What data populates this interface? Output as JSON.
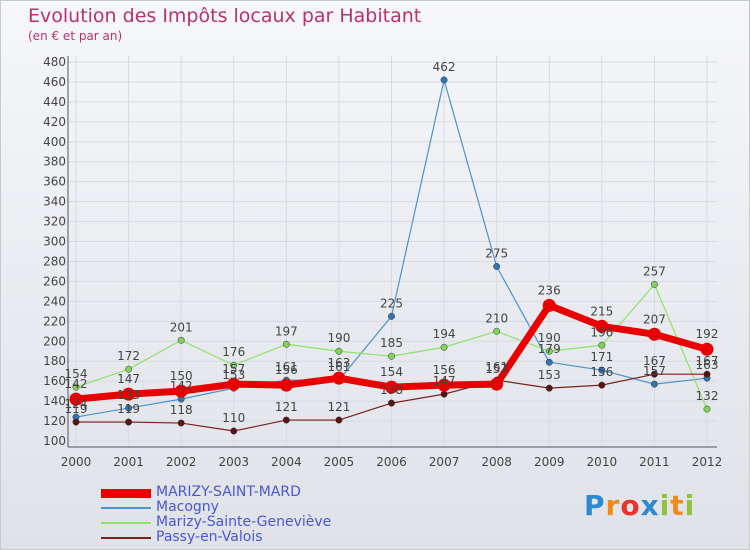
{
  "chart_data": {
    "type": "line",
    "title": "Evolution des Impôts locaux par Habitant",
    "subtitle": "(en € et par an)",
    "xlabel": "",
    "ylabel": "",
    "ylim": [
      100,
      480
    ],
    "y_ticks": [
      100,
      120,
      140,
      160,
      180,
      200,
      220,
      240,
      260,
      280,
      300,
      320,
      340,
      360,
      380,
      400,
      420,
      440,
      460,
      480
    ],
    "categories": [
      "2000",
      "2001",
      "2002",
      "2003",
      "2004",
      "2005",
      "2006",
      "2007",
      "2008",
      "2009",
      "2010",
      "2011",
      "2012"
    ],
    "series": [
      {
        "name": "MARIZY-SAINT-MARD",
        "color": "#e80000",
        "width": 7,
        "values": [
          142,
          147,
          150,
          157,
          156,
          163,
          154,
          156,
          157,
          236,
          215,
          207,
          192
        ],
        "labels": [
          "142",
          "147",
          "150",
          "157",
          "156",
          "163",
          "154",
          "156",
          "157",
          "236",
          "215",
          "207",
          "192"
        ]
      },
      {
        "name": "Macogny",
        "color": "#4c93cf",
        "width": 1.2,
        "values": [
          124,
          133,
          142,
          153,
          161,
          161,
          225,
          462,
          275,
          179,
          171,
          157,
          163
        ],
        "labels": [
          "124",
          "133",
          "142",
          "153",
          "161",
          "161",
          "225",
          "462",
          "275",
          "179",
          "171",
          "157",
          "163"
        ]
      },
      {
        "name": "Marizy-Sainte-Geneviève",
        "color": "#8ee26a",
        "width": 1.2,
        "values": [
          154,
          172,
          201,
          176,
          197,
          190,
          185,
          194,
          210,
          190,
          196,
          257,
          132
        ],
        "labels": [
          "154",
          "172",
          "201",
          "176",
          "197",
          "190",
          "185",
          "194",
          "210",
          "190",
          "196",
          "257",
          "132"
        ]
      },
      {
        "name": "Passy-en-Valois",
        "color": "#7a2121",
        "width": 1.2,
        "values": [
          119,
          119,
          118,
          110,
          121,
          121,
          138,
          147,
          161,
          153,
          156,
          167,
          167
        ],
        "labels": [
          "119",
          "119",
          "118",
          "110",
          "121",
          "121",
          "138",
          "147",
          "161",
          "153",
          "156",
          "167",
          "167"
        ]
      }
    ],
    "legend_position": "bottom-left"
  },
  "brand": {
    "letters": [
      "P",
      "r",
      "o",
      "x",
      "i",
      "t",
      "i"
    ],
    "colors": [
      "#2e8ad0",
      "#f08a1c",
      "#e8322b",
      "#2e8ad0",
      "#8fc23f",
      "#f08a1c",
      "#8fc23f"
    ]
  }
}
